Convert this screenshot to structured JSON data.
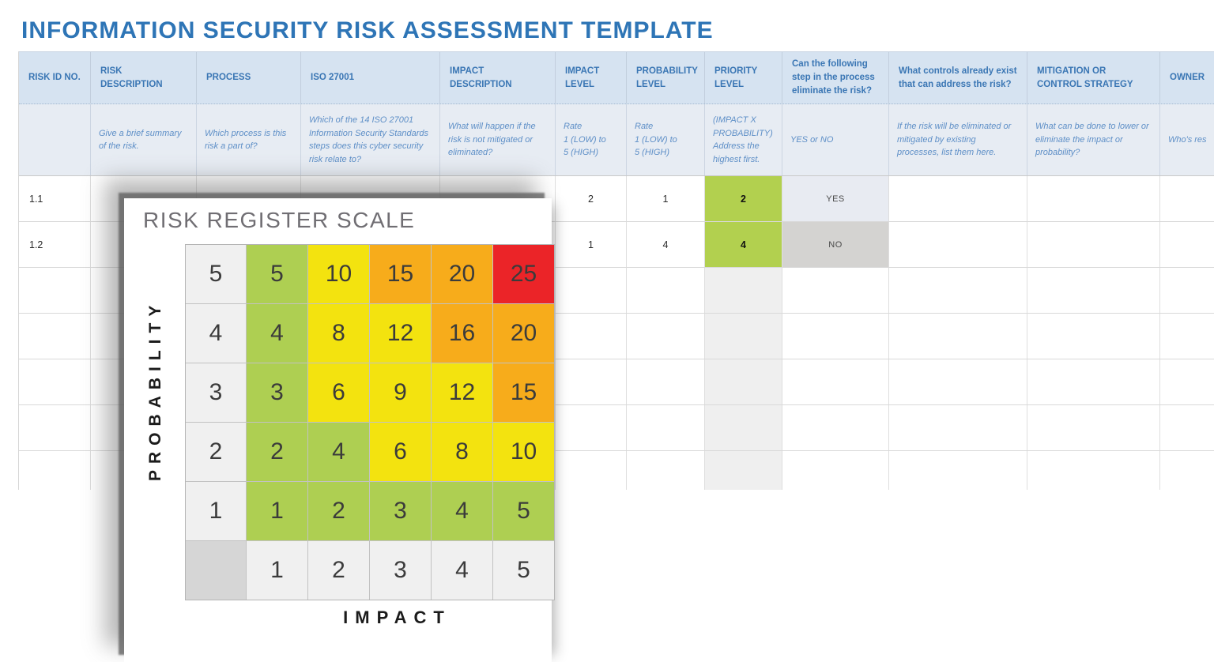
{
  "title": "INFORMATION SECURITY RISK ASSESSMENT TEMPLATE",
  "colors": {
    "title_blue": "#2E75B6",
    "header_text": "#3A76B4",
    "header_bg": "#D6E3F1",
    "hint_bg": "#E7ECF3",
    "hint_text": "#5E8FC7",
    "priority_green": "#B2D04F",
    "yes_bg": "#E8EBF2",
    "no_bg": "#D4D3D1",
    "priority_col_bg": "#EFEFEF"
  },
  "table": {
    "columns": [
      {
        "id": "risk_id",
        "label": "RISK ID NO.",
        "hint": ""
      },
      {
        "id": "risk_description",
        "label": "RISK DESCRIPTION",
        "hint": "Give a brief summary of the risk."
      },
      {
        "id": "process",
        "label": "PROCESS",
        "hint": "Which process is this risk a part of?"
      },
      {
        "id": "iso_27001",
        "label": "ISO 27001",
        "hint": "Which of the 14 ISO 27001 Information Security Standards steps does this cyber security risk relate to?"
      },
      {
        "id": "impact_description",
        "label": "IMPACT DESCRIPTION",
        "hint": "What will happen if the risk is not mitigated or eliminated?"
      },
      {
        "id": "impact_level",
        "label": "IMPACT LEVEL",
        "hint": "Rate\n1 (LOW) to\n5 (HIGH)"
      },
      {
        "id": "probability_level",
        "label": "PROBABILITY LEVEL",
        "hint": "Rate\n1 (LOW) to\n5 (HIGH)"
      },
      {
        "id": "priority_level",
        "label": "PRIORITY LEVEL",
        "hint": "(IMPACT X PROBABILITY) Address the highest first."
      },
      {
        "id": "eliminate",
        "label": "Can the following step in the process eliminate the risk?",
        "hint": "YES or NO"
      },
      {
        "id": "controls",
        "label": "What controls already exist that can address the risk?",
        "hint": "If the risk will be eliminated or mitigated by existing processes, list them here."
      },
      {
        "id": "mitigation",
        "label": "MITIGATION OR CONTROL STRATEGY",
        "hint": "What can be done to lower or eliminate the impact or probability?"
      },
      {
        "id": "owner",
        "label": "OWNER",
        "hint": "Who's res"
      }
    ],
    "rows": [
      {
        "risk_id": "1.1",
        "impact_level": "2",
        "probability_level": "1",
        "priority_level": "2",
        "eliminate": "YES"
      },
      {
        "risk_id": "1.2",
        "impact_level": "1",
        "probability_level": "4",
        "priority_level": "4",
        "eliminate": "NO"
      }
    ],
    "empty_row_count": 5
  },
  "risk_scale": {
    "title": "RISK REGISTER SCALE",
    "y_axis_label": "PROBABILITY",
    "x_axis_label": "IMPACT",
    "impact_values": [
      "1",
      "2",
      "3",
      "4",
      "5"
    ],
    "colors": {
      "green": "#AECF52",
      "yellow": "#F3E30F",
      "orange": "#F7AC1B",
      "red": "#EB2428"
    },
    "rows": [
      {
        "probability": "5",
        "cells": [
          {
            "value": "5",
            "level": "green"
          },
          {
            "value": "10",
            "level": "yellow"
          },
          {
            "value": "15",
            "level": "orange"
          },
          {
            "value": "20",
            "level": "orange"
          },
          {
            "value": "25",
            "level": "red"
          }
        ]
      },
      {
        "probability": "4",
        "cells": [
          {
            "value": "4",
            "level": "green"
          },
          {
            "value": "8",
            "level": "yellow"
          },
          {
            "value": "12",
            "level": "yellow"
          },
          {
            "value": "16",
            "level": "orange"
          },
          {
            "value": "20",
            "level": "orange"
          }
        ]
      },
      {
        "probability": "3",
        "cells": [
          {
            "value": "3",
            "level": "green"
          },
          {
            "value": "6",
            "level": "yellow"
          },
          {
            "value": "9",
            "level": "yellow"
          },
          {
            "value": "12",
            "level": "yellow"
          },
          {
            "value": "15",
            "level": "orange"
          }
        ]
      },
      {
        "probability": "2",
        "cells": [
          {
            "value": "2",
            "level": "green"
          },
          {
            "value": "4",
            "level": "green"
          },
          {
            "value": "6",
            "level": "yellow"
          },
          {
            "value": "8",
            "level": "yellow"
          },
          {
            "value": "10",
            "level": "yellow"
          }
        ]
      },
      {
        "probability": "1",
        "cells": [
          {
            "value": "1",
            "level": "green"
          },
          {
            "value": "2",
            "level": "green"
          },
          {
            "value": "3",
            "level": "green"
          },
          {
            "value": "4",
            "level": "green"
          },
          {
            "value": "5",
            "level": "green"
          }
        ]
      }
    ]
  }
}
